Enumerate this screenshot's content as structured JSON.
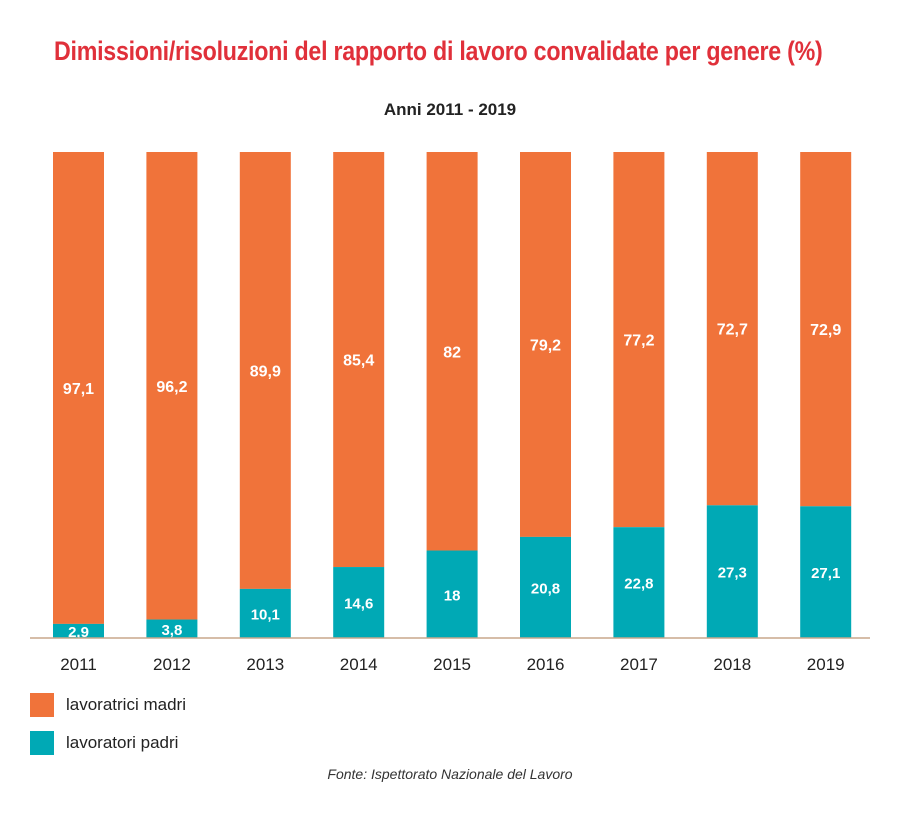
{
  "chart_data": {
    "type": "bar",
    "stacked": true,
    "title": "Dimissioni/risoluzioni del rapporto di lavoro convalidate per genere (%)",
    "subtitle": "Anni 2011 - 2019",
    "categories": [
      "2011",
      "2012",
      "2013",
      "2014",
      "2015",
      "2016",
      "2017",
      "2018",
      "2019"
    ],
    "series": [
      {
        "name": "lavoratori padri",
        "color": "#00a9b5",
        "values": [
          2.9,
          3.8,
          10.1,
          14.6,
          18,
          20.8,
          22.8,
          27.3,
          27.1
        ],
        "labels": [
          "2,9",
          "3,8",
          "10,1",
          "14,6",
          "18",
          "20,8",
          "22,8",
          "27,3",
          "27,1"
        ]
      },
      {
        "name": "lavoratrici madri",
        "color": "#f0733a",
        "values": [
          97.1,
          96.2,
          89.9,
          85.4,
          82,
          79.2,
          77.2,
          72.7,
          72.9
        ],
        "labels": [
          "97,1",
          "96,2",
          "89,9",
          "85,4",
          "82",
          "79,2",
          "77,2",
          "72,7",
          "72,9"
        ]
      }
    ],
    "ylim": [
      0,
      100
    ],
    "grid": false,
    "legend_position": "bottom-left"
  },
  "legend": [
    {
      "label": "lavoratrici madri",
      "color": "#f0733a"
    },
    {
      "label": "lavoratori padri",
      "color": "#00a9b5"
    }
  ],
  "source": "Fonte: Ispettorato Nazionale del Lavoro"
}
